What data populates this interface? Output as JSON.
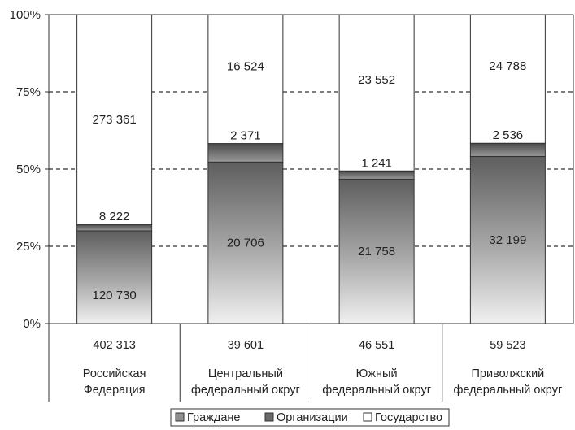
{
  "chart_data": {
    "type": "bar",
    "stacked": "percent",
    "ylim": [
      0,
      100
    ],
    "yticks": [
      "0%",
      "25%",
      "50%",
      "75%",
      "100%"
    ],
    "grid": "dashed-horizontal",
    "legend_position": "bottom",
    "categories": [
      {
        "total": "402 313",
        "line1": "Российская",
        "line2": "Федерация"
      },
      {
        "total": "39 601",
        "line1": "Центральный",
        "line2": "федеральный округ"
      },
      {
        "total": "46 551",
        "line1": "Южный",
        "line2": "федеральный округ"
      },
      {
        "total": "59 523",
        "line1": "Приволжский",
        "line2": "федеральный округ"
      }
    ],
    "series": [
      {
        "name": "Граждане",
        "values": [
          120730,
          20706,
          21758,
          32199
        ],
        "labels": [
          "120 730",
          "20 706",
          "21 758",
          "32 199"
        ],
        "color": "#8f8f8f"
      },
      {
        "name": "Организации",
        "values": [
          8222,
          2371,
          1241,
          2536
        ],
        "labels": [
          "8 222",
          "2 371",
          "1 241",
          "2 536"
        ],
        "color": "#6a6a6a"
      },
      {
        "name": "Государство",
        "values": [
          273361,
          16524,
          23552,
          24788
        ],
        "labels": [
          "273 361",
          "16 524",
          "23 552",
          "24 788"
        ],
        "color": "#ffffff"
      }
    ]
  }
}
